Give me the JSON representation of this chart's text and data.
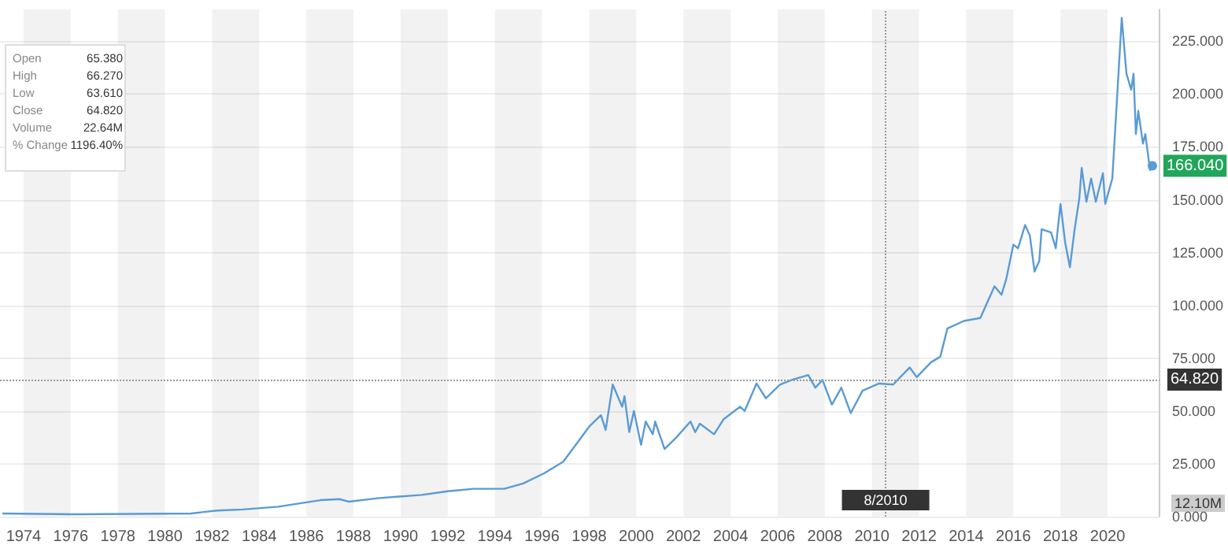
{
  "chart_data": {
    "type": "line",
    "x": [
      1973.1,
      1976.2,
      1981.1,
      1982.2,
      1983.3,
      1984.8,
      1986.6,
      1987.4,
      1987.8,
      1989.1,
      1990.9,
      1992.0,
      1993.1,
      1994.4,
      1995.2,
      1996.1,
      1996.9,
      1997.7,
      1998.0,
      1998.5,
      1998.7,
      1999.0,
      1999.4,
      1999.5,
      1999.7,
      1999.9,
      2000.2,
      2000.4,
      2000.7,
      2000.8,
      2001.2,
      2001.7,
      2002.3,
      2002.5,
      2002.7,
      2003.3,
      2003.7,
      2004.4,
      2004.6,
      2005.1,
      2005.5,
      2006.1,
      2006.6,
      2007.3,
      2007.6,
      2007.9,
      2008.3,
      2008.7,
      2009.1,
      2009.6,
      2010.3,
      2010.9,
      2011.6,
      2011.9,
      2012.5,
      2012.9,
      2013.2,
      2013.9,
      2014.6,
      2014.8,
      2015.2,
      2015.5,
      2015.7,
      2016.0,
      2016.2,
      2016.5,
      2016.7,
      2016.9,
      2017.1,
      2017.2,
      2017.6,
      2017.8,
      2018.0,
      2018.2,
      2018.4,
      2018.6,
      2018.8,
      2018.9,
      2019.1,
      2019.3,
      2019.5,
      2019.8,
      2019.9,
      2020.2,
      2020.6,
      2020.8,
      2021.0,
      2021.1,
      2021.2,
      2021.3,
      2021.5,
      2021.6,
      2021.8,
      2021.9
    ],
    "series": [
      {
        "color": "#5a9bd5",
        "values": [
          1.5,
          1.1,
          1.5,
          2.9,
          3.4,
          4.7,
          7.8,
          8.3,
          7.1,
          8.8,
          10.3,
          12,
          13.2,
          13.2,
          15.7,
          20.6,
          26,
          38,
          42.6,
          48,
          41,
          62.5,
          52,
          57,
          40,
          50,
          34,
          45,
          39,
          45,
          32,
          37.5,
          45,
          40,
          44,
          39,
          46,
          52,
          50,
          63,
          56,
          62.5,
          64.7,
          67,
          61,
          64.7,
          53,
          61,
          49,
          59.6,
          63,
          62.5,
          70.6,
          66,
          73,
          75.7,
          89,
          92.6,
          94,
          99,
          109,
          105,
          112.5,
          128.7,
          127,
          138,
          133,
          116,
          121,
          136,
          134.5,
          127,
          148,
          129.6,
          118,
          136,
          150.7,
          165,
          149,
          160,
          149,
          162.5,
          148,
          160,
          236,
          209.6,
          202,
          209.6,
          181,
          192,
          176.5,
          181,
          164,
          166
        ]
      }
    ],
    "xlim": [
      1973,
      2022.2
    ],
    "xticks": [
      1974,
      1976,
      1978,
      1980,
      1982,
      1984,
      1986,
      1988,
      1990,
      1992,
      1994,
      1996,
      1998,
      2000,
      2002,
      2004,
      2006,
      2008,
      2010,
      2012,
      2014,
      2016,
      2018,
      2020
    ],
    "ylim": [
      0,
      240
    ],
    "yticks": [
      {
        "value": 0,
        "label": "0.000"
      },
      {
        "value": 25,
        "label": "25.000"
      },
      {
        "value": 50,
        "label": "50.000"
      },
      {
        "value": 75,
        "label": "75.000"
      },
      {
        "value": 100,
        "label": "100.000"
      },
      {
        "value": 125,
        "label": "125.000"
      },
      {
        "value": 150,
        "label": "150.000"
      },
      {
        "value": 175,
        "label": "175.000"
      },
      {
        "value": 200,
        "label": "200.000"
      },
      {
        "value": 225,
        "label": "225.000"
      }
    ],
    "grid": true,
    "marker": "none",
    "line_style": "solid",
    "ref_lines": [
      {
        "axis": "y",
        "value": 64.82,
        "label": "64.820",
        "color": "#999999",
        "line_style": "dotted"
      },
      {
        "axis": "x",
        "value": 2010.58,
        "color": "#999999",
        "line_style": "dotted"
      }
    ],
    "annotations": [
      {
        "text": "166.040",
        "x": 2021.9,
        "y": 166
      },
      {
        "text": "8/2010",
        "x": 2010.58
      },
      "Open 65.380",
      "High 66.270",
      "Low 63.610",
      "Close 64.820",
      "Volume 22.64M",
      "% Change 1196.40%",
      "12.10M"
    ]
  }
}
